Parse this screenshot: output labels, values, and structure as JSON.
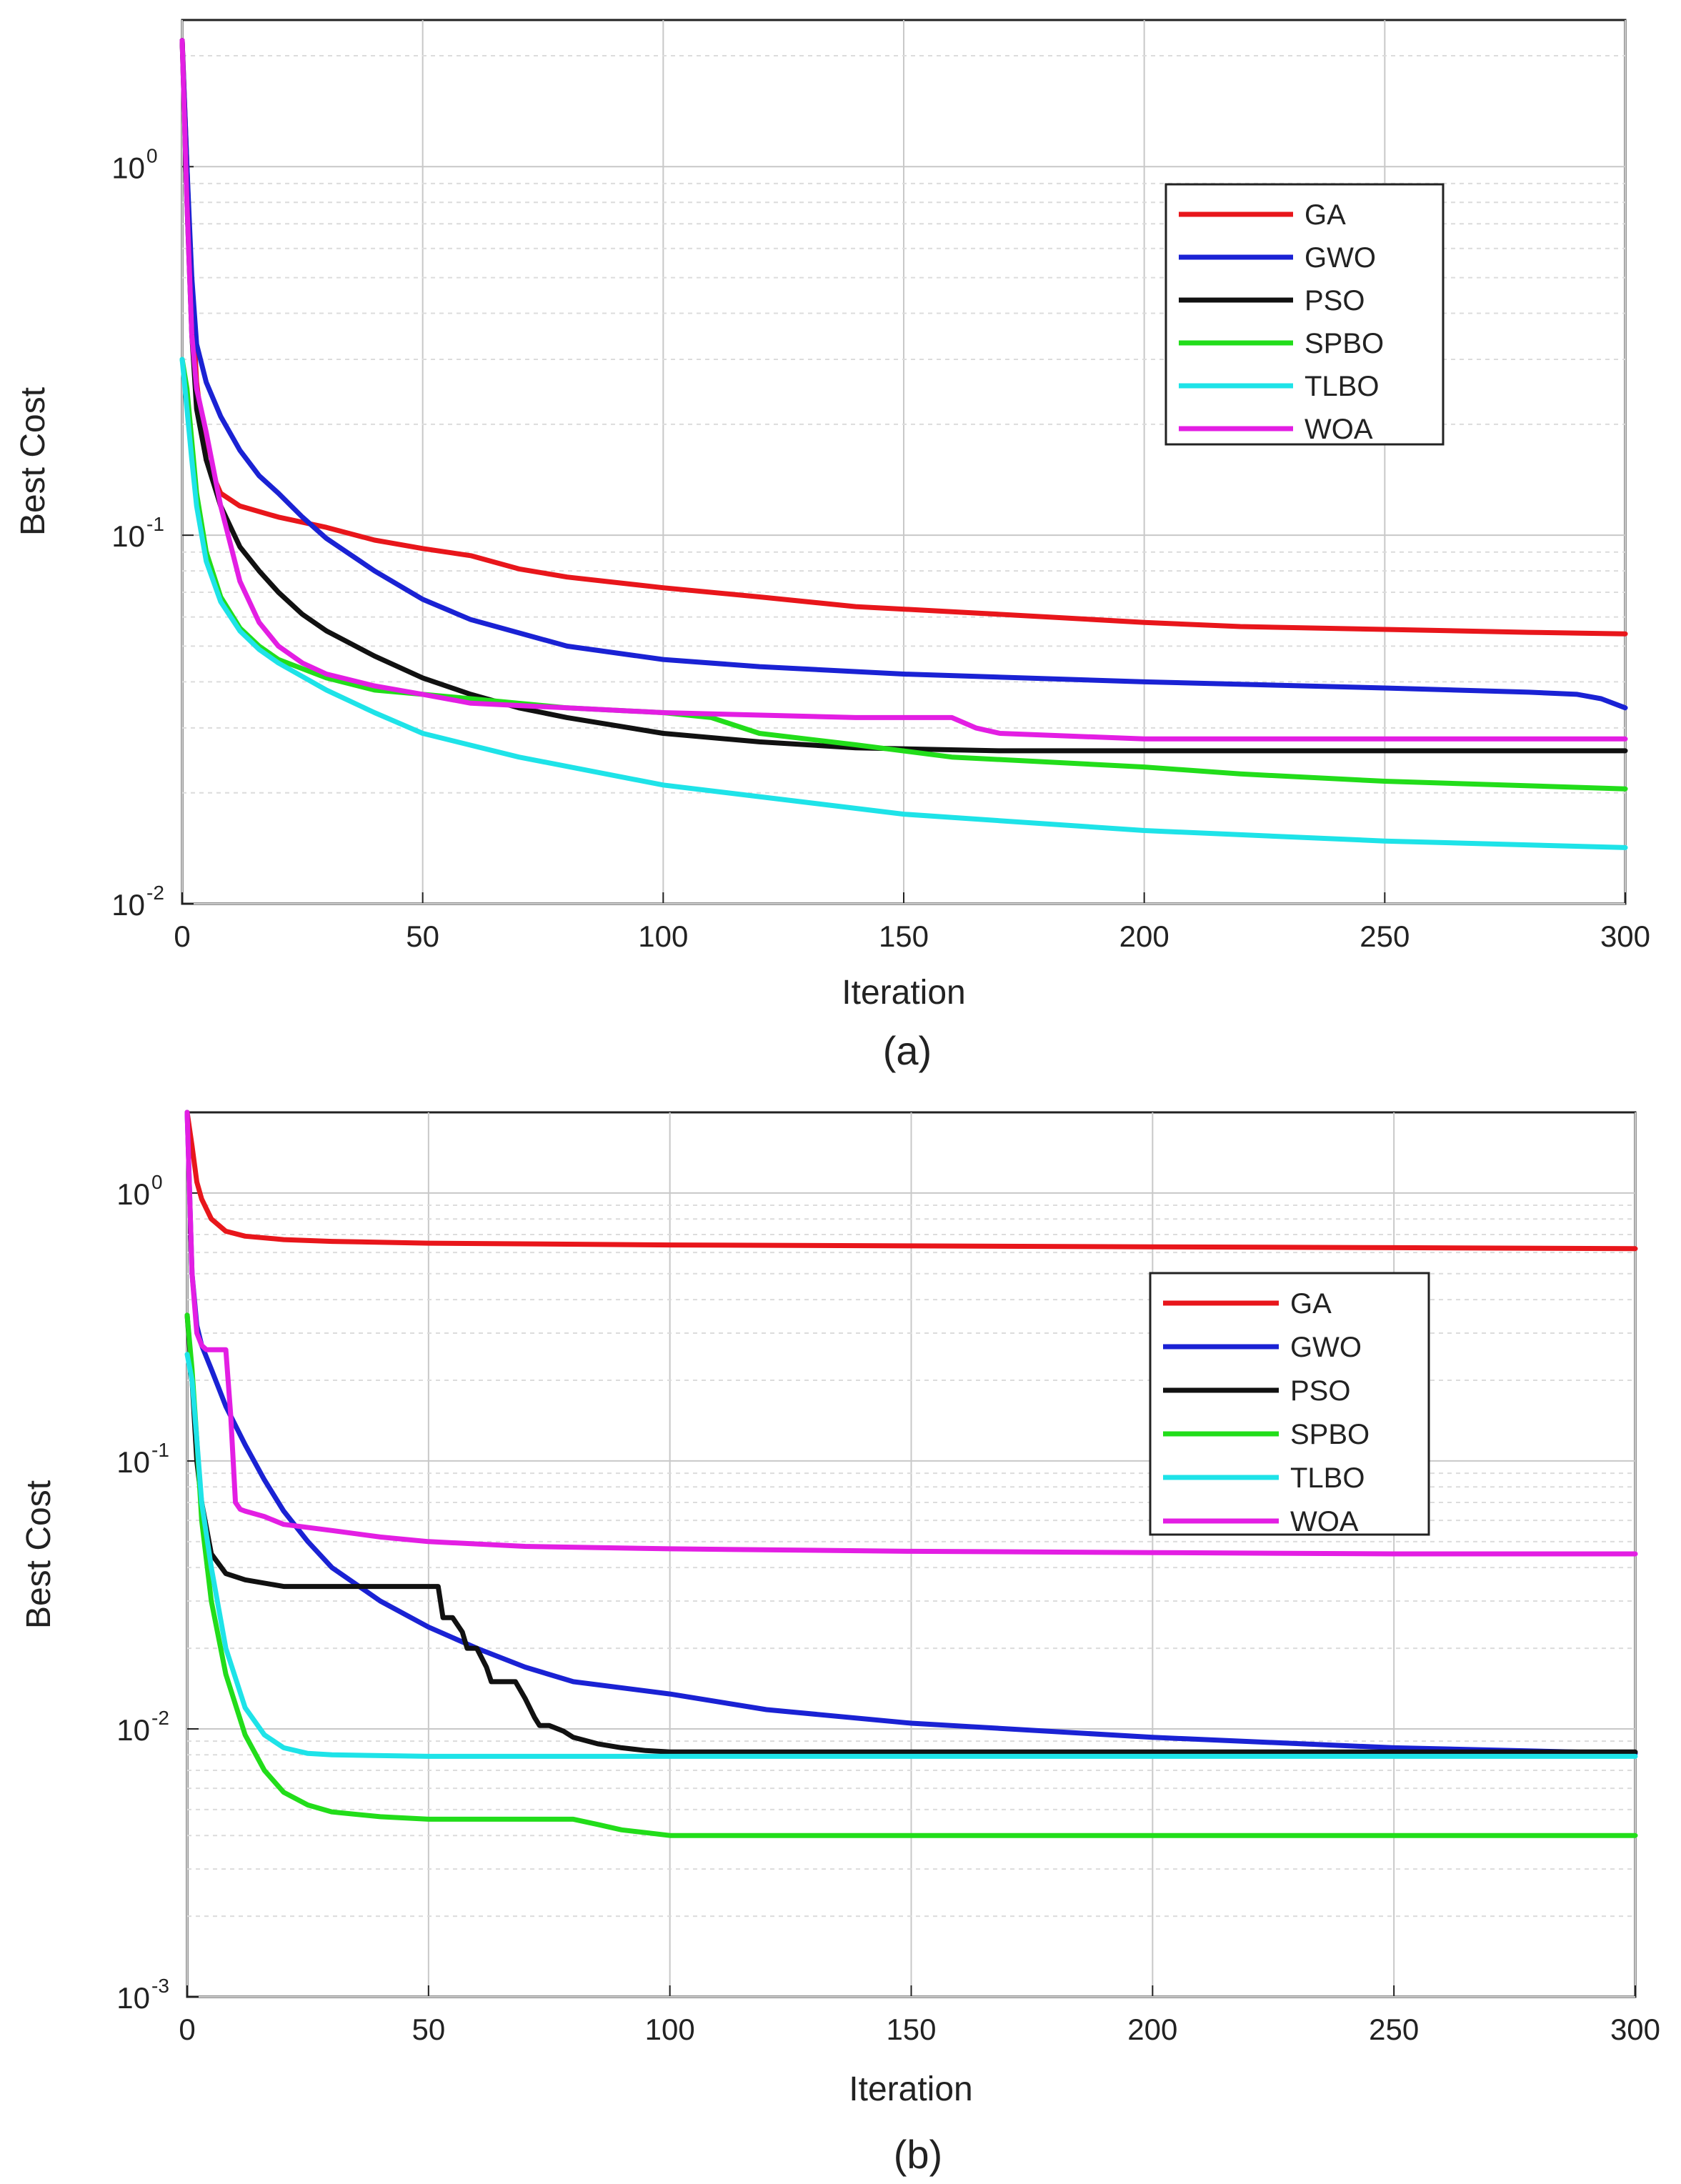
{
  "chart_data": [
    {
      "type": "line",
      "caption": "(a)",
      "xlabel": "Iteration",
      "ylabel": "Best Cost",
      "xlim": [
        0,
        300
      ],
      "ylim": [
        0.01,
        2.5
      ],
      "y_scale": "log",
      "grid": true,
      "legend_position": "top-right",
      "x_ticks": [
        "0",
        "50",
        "100",
        "150",
        "200",
        "250",
        "300"
      ],
      "y_ticks": [
        {
          "base": "10",
          "exp": "-2",
          "value": 0.01
        },
        {
          "base": "10",
          "exp": "-1",
          "value": 0.1
        },
        {
          "base": "10",
          "exp": "0",
          "value": 1
        }
      ],
      "series": [
        {
          "name": "GA",
          "color": "#e8161b",
          "x": [
            0,
            1,
            2,
            3,
            5,
            8,
            12,
            20,
            30,
            40,
            50,
            60,
            70,
            80,
            100,
            120,
            140,
            160,
            180,
            200,
            220,
            250,
            280,
            300
          ],
          "y": [
            2.2,
            1.0,
            0.45,
            0.26,
            0.16,
            0.13,
            0.12,
            0.112,
            0.105,
            0.097,
            0.092,
            0.088,
            0.081,
            0.077,
            0.072,
            0.068,
            0.064,
            0.062,
            0.06,
            0.058,
            0.0565,
            0.0555,
            0.0545,
            0.054
          ]
        },
        {
          "name": "GWO",
          "color": "#1a22d4",
          "x": [
            0,
            1,
            2,
            3,
            5,
            8,
            12,
            16,
            20,
            25,
            30,
            40,
            50,
            60,
            80,
            100,
            120,
            150,
            200,
            250,
            280,
            290,
            295,
            300
          ],
          "y": [
            2.2,
            1.0,
            0.5,
            0.33,
            0.26,
            0.21,
            0.17,
            0.145,
            0.13,
            0.112,
            0.098,
            0.08,
            0.067,
            0.059,
            0.05,
            0.046,
            0.044,
            0.042,
            0.04,
            0.0385,
            0.0375,
            0.037,
            0.036,
            0.034
          ]
        },
        {
          "name": "PSO",
          "color": "#111111",
          "x": [
            0,
            1,
            2,
            3,
            5,
            8,
            12,
            16,
            20,
            25,
            30,
            40,
            50,
            60,
            70,
            80,
            100,
            120,
            140,
            170,
            200,
            250,
            300
          ],
          "y": [
            2.2,
            0.8,
            0.35,
            0.22,
            0.16,
            0.12,
            0.093,
            0.08,
            0.07,
            0.061,
            0.055,
            0.047,
            0.041,
            0.037,
            0.034,
            0.032,
            0.029,
            0.0275,
            0.0265,
            0.026,
            0.026,
            0.026,
            0.026
          ]
        },
        {
          "name": "SPBO",
          "color": "#22dd1a",
          "x": [
            0,
            1,
            2,
            3,
            5,
            8,
            12,
            16,
            20,
            30,
            40,
            50,
            60,
            80,
            100,
            110,
            120,
            140,
            160,
            200,
            220,
            250,
            300
          ],
          "y": [
            0.3,
            0.25,
            0.18,
            0.13,
            0.09,
            0.068,
            0.056,
            0.05,
            0.046,
            0.041,
            0.038,
            0.037,
            0.036,
            0.034,
            0.033,
            0.032,
            0.029,
            0.027,
            0.025,
            0.0235,
            0.0225,
            0.0215,
            0.0205
          ]
        },
        {
          "name": "TLBO",
          "color": "#1ee3e8",
          "x": [
            0,
            1,
            2,
            3,
            5,
            8,
            12,
            16,
            20,
            30,
            40,
            50,
            70,
            100,
            150,
            200,
            250,
            300
          ],
          "y": [
            0.3,
            0.22,
            0.16,
            0.12,
            0.085,
            0.066,
            0.055,
            0.049,
            0.045,
            0.038,
            0.033,
            0.029,
            0.025,
            0.021,
            0.0175,
            0.0158,
            0.0148,
            0.0142
          ]
        },
        {
          "name": "WOA",
          "color": "#e31ee3",
          "x": [
            0,
            1,
            2,
            3,
            5,
            8,
            12,
            16,
            20,
            25,
            30,
            40,
            50,
            60,
            80,
            100,
            140,
            160,
            165,
            170,
            200,
            250,
            300
          ],
          "y": [
            2.2,
            0.8,
            0.35,
            0.25,
            0.19,
            0.12,
            0.075,
            0.058,
            0.05,
            0.045,
            0.042,
            0.039,
            0.037,
            0.035,
            0.034,
            0.033,
            0.032,
            0.032,
            0.03,
            0.029,
            0.028,
            0.028,
            0.028
          ]
        }
      ]
    },
    {
      "type": "line",
      "caption": "(b)",
      "xlabel": "Iteration",
      "ylabel": "Best Cost",
      "xlim": [
        0,
        300
      ],
      "ylim": [
        0.001,
        2
      ],
      "y_scale": "log",
      "grid": true,
      "legend_position": "top-right",
      "x_ticks": [
        "0",
        "50",
        "100",
        "150",
        "200",
        "250",
        "300"
      ],
      "y_ticks": [
        {
          "base": "10",
          "exp": "-3",
          "value": 0.001
        },
        {
          "base": "10",
          "exp": "-2",
          "value": 0.01
        },
        {
          "base": "10",
          "exp": "-1",
          "value": 0.1
        },
        {
          "base": "10",
          "exp": "0",
          "value": 1
        }
      ],
      "series": [
        {
          "name": "GA",
          "color": "#e8161b",
          "x": [
            0,
            1,
            2,
            3,
            5,
            8,
            12,
            20,
            30,
            50,
            100,
            150,
            200,
            250,
            300
          ],
          "y": [
            2.0,
            1.5,
            1.1,
            0.95,
            0.8,
            0.72,
            0.69,
            0.67,
            0.66,
            0.65,
            0.64,
            0.635,
            0.63,
            0.625,
            0.62
          ]
        },
        {
          "name": "GWO",
          "color": "#1a22d4",
          "x": [
            0,
            1,
            2,
            3,
            5,
            8,
            12,
            16,
            20,
            25,
            30,
            40,
            50,
            60,
            70,
            80,
            100,
            120,
            150,
            200,
            250,
            300
          ],
          "y": [
            2.0,
            0.5,
            0.32,
            0.27,
            0.22,
            0.16,
            0.115,
            0.085,
            0.065,
            0.05,
            0.04,
            0.03,
            0.024,
            0.02,
            0.017,
            0.015,
            0.0135,
            0.0118,
            0.0105,
            0.0093,
            0.0085,
            0.0081
          ]
        },
        {
          "name": "PSO",
          "color": "#111111",
          "x": [
            0,
            1,
            2,
            3,
            5,
            8,
            12,
            20,
            30,
            40,
            50,
            52,
            53,
            55,
            57,
            58,
            60,
            62,
            63,
            65,
            68,
            70,
            72,
            73,
            75,
            78,
            80,
            85,
            90,
            95,
            100,
            150,
            200,
            300
          ],
          "y": [
            0.35,
            0.2,
            0.1,
            0.07,
            0.045,
            0.038,
            0.036,
            0.034,
            0.034,
            0.034,
            0.034,
            0.034,
            0.026,
            0.026,
            0.023,
            0.02,
            0.02,
            0.017,
            0.015,
            0.015,
            0.015,
            0.013,
            0.011,
            0.0103,
            0.0103,
            0.0098,
            0.0093,
            0.0088,
            0.0085,
            0.0083,
            0.0082,
            0.0082,
            0.0082,
            0.0082
          ]
        },
        {
          "name": "SPBO",
          "color": "#22dd1a",
          "x": [
            0,
            1,
            2,
            3,
            5,
            8,
            12,
            16,
            20,
            25,
            30,
            40,
            50,
            60,
            80,
            85,
            90,
            95,
            100,
            150,
            200,
            300
          ],
          "y": [
            0.35,
            0.22,
            0.12,
            0.06,
            0.03,
            0.016,
            0.0095,
            0.007,
            0.0058,
            0.0052,
            0.0049,
            0.0047,
            0.0046,
            0.0046,
            0.0046,
            0.0044,
            0.0042,
            0.0041,
            0.004,
            0.004,
            0.004,
            0.004
          ]
        },
        {
          "name": "TLBO",
          "color": "#1ee3e8",
          "x": [
            0,
            1,
            2,
            3,
            5,
            8,
            12,
            16,
            20,
            25,
            30,
            50,
            100,
            150,
            200,
            300
          ],
          "y": [
            0.25,
            0.2,
            0.12,
            0.07,
            0.04,
            0.02,
            0.012,
            0.0095,
            0.0085,
            0.0081,
            0.008,
            0.0079,
            0.0079,
            0.0079,
            0.0079,
            0.0079
          ]
        },
        {
          "name": "WOA",
          "color": "#e31ee3",
          "x": [
            0,
            1,
            2,
            3,
            4,
            5,
            8,
            9,
            10,
            11,
            12,
            16,
            20,
            30,
            40,
            50,
            70,
            100,
            150,
            200,
            250,
            300
          ],
          "y": [
            2.0,
            0.5,
            0.3,
            0.27,
            0.26,
            0.26,
            0.26,
            0.15,
            0.07,
            0.066,
            0.065,
            0.062,
            0.058,
            0.055,
            0.052,
            0.05,
            0.048,
            0.047,
            0.046,
            0.0455,
            0.045,
            0.045
          ]
        }
      ]
    }
  ]
}
